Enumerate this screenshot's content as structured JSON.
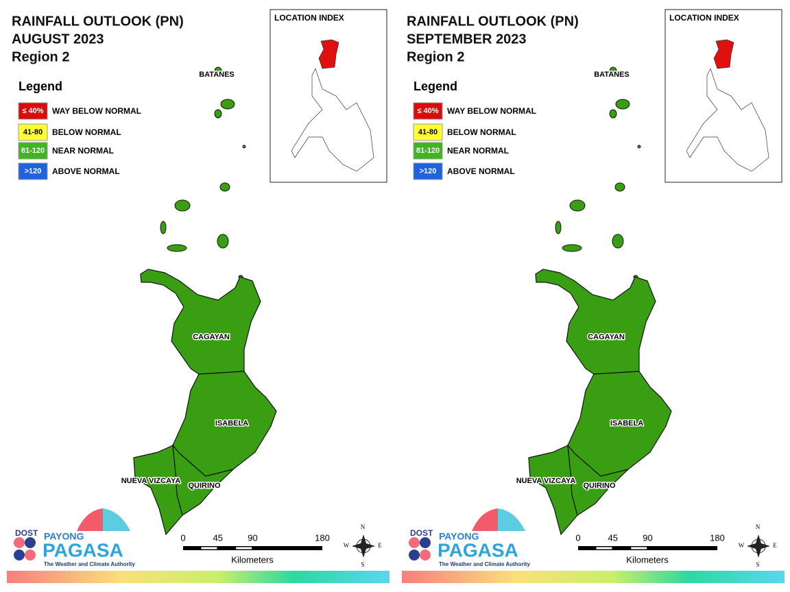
{
  "panels": [
    {
      "title": [
        "RAINFALL OUTLOOK (PN)",
        "AUGUST 2023",
        "Region 2"
      ],
      "legend": {
        "title": "Legend",
        "items": [
          {
            "swatch": "≤ 40%",
            "label": "WAY BELOW NORMAL",
            "color": "#dd0a0a"
          },
          {
            "swatch": "41-80",
            "label": "BELOW NORMAL",
            "color": "#ffff33"
          },
          {
            "swatch": "81-120",
            "label": "NEAR NORMAL",
            "color": "#3fb522"
          },
          {
            "swatch": ">120",
            "label": "ABOVE NORMAL",
            "color": "#1f63e0"
          }
        ]
      },
      "location_index": "LOCATION INDEX",
      "island_label": "BATANES",
      "provinces": [
        "CAGAYAN",
        "ISABELA",
        "NUEVA VIZCAYA",
        "QUIRINO"
      ],
      "map_color": "#3a9e12",
      "scale": {
        "ticks": [
          0,
          45,
          90,
          180
        ],
        "unit": "Kilometers"
      },
      "compass": [
        "N",
        "E",
        "S",
        "W"
      ],
      "logo": {
        "agency": "DOST",
        "top": "PAYONG",
        "name": "PAGASA",
        "tagline": "The Weather and Climate Authority"
      }
    },
    {
      "title": [
        "RAINFALL OUTLOOK (PN)",
        "SEPTEMBER 2023",
        "Region 2"
      ],
      "legend": {
        "title": "Legend",
        "items": [
          {
            "swatch": "≤ 40%",
            "label": "WAY BELOW NORMAL",
            "color": "#dd0a0a"
          },
          {
            "swatch": "41-80",
            "label": "BELOW NORMAL",
            "color": "#ffff33"
          },
          {
            "swatch": "81-120",
            "label": "NEAR NORMAL",
            "color": "#3fb522"
          },
          {
            "swatch": ">120",
            "label": "ABOVE NORMAL",
            "color": "#1f63e0"
          }
        ]
      },
      "location_index": "LOCATION INDEX",
      "island_label": "BATANES",
      "provinces": [
        "CAGAYAN",
        "ISABELA",
        "NUEVA VIZCAYA",
        "QUIRINO"
      ],
      "map_color": "#3a9e12",
      "scale": {
        "ticks": [
          0,
          45,
          90,
          180
        ],
        "unit": "Kilometers"
      },
      "compass": [
        "N",
        "E",
        "S",
        "W"
      ],
      "logo": {
        "agency": "DOST",
        "top": "PAYONG",
        "name": "PAGASA",
        "tagline": "The Weather and Climate Authority"
      }
    }
  ]
}
